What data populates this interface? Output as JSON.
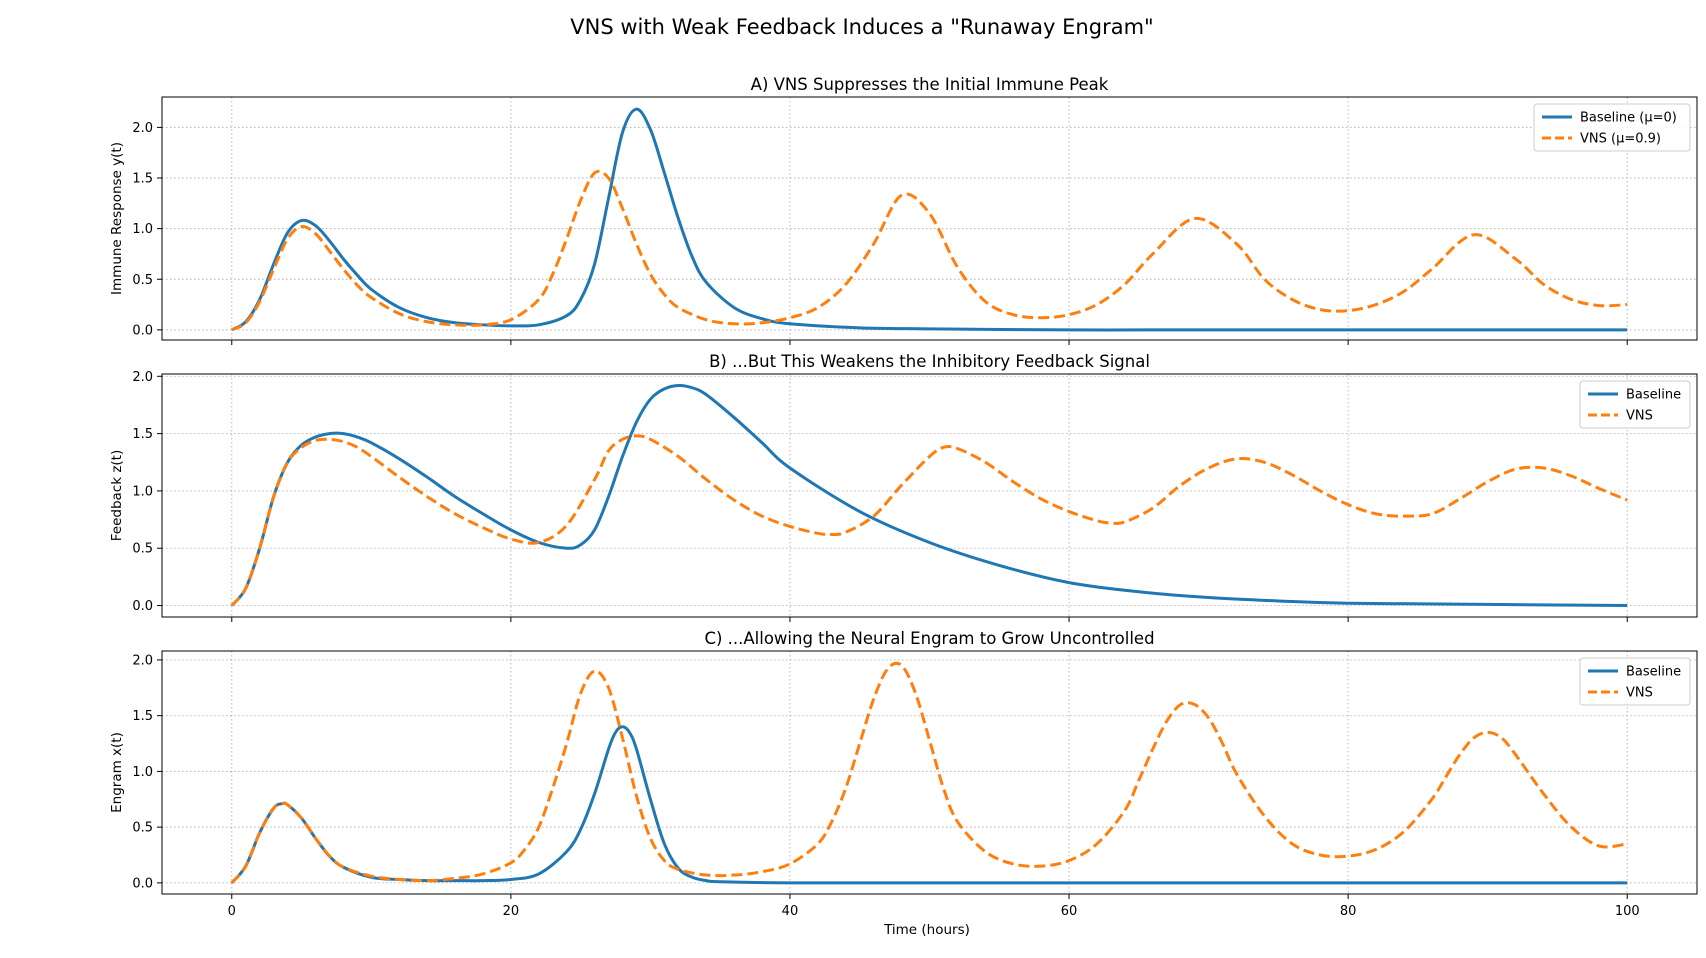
{
  "figure": {
    "suptitle": "VNS with Weak Feedback Induces a \"Runaway Engram\"",
    "xlabel": "Time (hours)"
  },
  "colors": {
    "baseline": "#1f77b4",
    "vns": "#ff7f0e"
  },
  "chart_data": [
    {
      "type": "line",
      "title": "A) VNS Suppresses the Initial Immune Peak",
      "xlabel": "Time (hours)",
      "ylabel": "Immune Response y(t)",
      "xlim": [
        -5,
        105
      ],
      "ylim": [
        -0.1,
        2.3
      ],
      "xticks": [
        0,
        20,
        40,
        60,
        80,
        100
      ],
      "yticks": [
        0.0,
        0.5,
        1.0,
        1.5,
        2.0
      ],
      "ytick_labels": [
        "0.0",
        "0.5",
        "1.0",
        "1.5",
        "2.0"
      ],
      "grid": true,
      "legend_position": "top-right",
      "series": [
        {
          "name": "Baseline (μ=0)",
          "style": "solid",
          "x": [
            0,
            1,
            2,
            3,
            4,
            5,
            6,
            7,
            8,
            9,
            10,
            12,
            14,
            16,
            18,
            20,
            22,
            24,
            25,
            26,
            27,
            28,
            29,
            30,
            31,
            32,
            33,
            34,
            36,
            38,
            40,
            45,
            50,
            60,
            70,
            80,
            90,
            100
          ],
          "y": [
            0.0,
            0.08,
            0.3,
            0.65,
            0.96,
            1.08,
            1.03,
            0.88,
            0.7,
            0.54,
            0.4,
            0.22,
            0.12,
            0.07,
            0.05,
            0.04,
            0.05,
            0.14,
            0.3,
            0.65,
            1.3,
            1.95,
            2.18,
            1.98,
            1.55,
            1.1,
            0.72,
            0.47,
            0.22,
            0.11,
            0.06,
            0.02,
            0.01,
            0.0,
            0.0,
            0.0,
            0.0,
            0.0
          ]
        },
        {
          "name": "VNS (μ=0.9)",
          "style": "dashed",
          "x": [
            0,
            1,
            2,
            3,
            4,
            5,
            6,
            7,
            8,
            9,
            10,
            12,
            14,
            16,
            18,
            20,
            22,
            23,
            24,
            25,
            26,
            27,
            28,
            29,
            30,
            31,
            32,
            34,
            36,
            38,
            40,
            42,
            44,
            46,
            48,
            50,
            52,
            54,
            56,
            58,
            60,
            62,
            64,
            66,
            69,
            72,
            74,
            76,
            78,
            80,
            82,
            84,
            86,
            89,
            92,
            94,
            96,
            98,
            100
          ],
          "y": [
            0.0,
            0.07,
            0.28,
            0.6,
            0.9,
            1.02,
            0.95,
            0.78,
            0.6,
            0.44,
            0.32,
            0.16,
            0.08,
            0.05,
            0.05,
            0.1,
            0.3,
            0.55,
            0.9,
            1.28,
            1.55,
            1.5,
            1.2,
            0.85,
            0.55,
            0.35,
            0.22,
            0.1,
            0.06,
            0.07,
            0.12,
            0.22,
            0.45,
            0.85,
            1.33,
            1.15,
            0.62,
            0.28,
            0.15,
            0.12,
            0.15,
            0.25,
            0.45,
            0.75,
            1.1,
            0.85,
            0.5,
            0.3,
            0.2,
            0.19,
            0.25,
            0.38,
            0.6,
            0.94,
            0.7,
            0.45,
            0.3,
            0.24,
            0.25
          ]
        }
      ]
    },
    {
      "type": "line",
      "title": "B) ...But This Weakens the Inhibitory Feedback Signal",
      "xlabel": "Time (hours)",
      "ylabel": "Feedback z(t)",
      "xlim": [
        -5,
        105
      ],
      "ylim": [
        -0.1,
        2.02
      ],
      "xticks": [
        0,
        20,
        40,
        60,
        80,
        100
      ],
      "yticks": [
        0.0,
        0.5,
        1.0,
        1.5,
        2.0
      ],
      "ytick_labels": [
        "0.0",
        "0.5",
        "1.0",
        "1.5",
        "2.0"
      ],
      "grid": true,
      "legend_position": "top-right",
      "series": [
        {
          "name": "Baseline",
          "style": "solid",
          "x": [
            0,
            1,
            2,
            3,
            4,
            5,
            6,
            7,
            8,
            9,
            10,
            12,
            14,
            16,
            18,
            20,
            22,
            24,
            25,
            26,
            27,
            28,
            29,
            30,
            31,
            32,
            33,
            34,
            36,
            38,
            40,
            45,
            50,
            55,
            60,
            65,
            70,
            75,
            80,
            90,
            100
          ],
          "y": [
            0.0,
            0.15,
            0.5,
            0.95,
            1.25,
            1.4,
            1.47,
            1.5,
            1.5,
            1.47,
            1.42,
            1.28,
            1.12,
            0.95,
            0.8,
            0.66,
            0.55,
            0.5,
            0.53,
            0.66,
            0.95,
            1.3,
            1.6,
            1.8,
            1.89,
            1.92,
            1.9,
            1.84,
            1.64,
            1.42,
            1.2,
            0.82,
            0.55,
            0.35,
            0.2,
            0.12,
            0.07,
            0.04,
            0.02,
            0.01,
            0.0
          ]
        },
        {
          "name": "VNS",
          "style": "dashed",
          "x": [
            0,
            1,
            2,
            3,
            4,
            5,
            6,
            7,
            8,
            9,
            10,
            12,
            14,
            16,
            18,
            20,
            22,
            24,
            26,
            27,
            28,
            29,
            30,
            32,
            34,
            36,
            38,
            40,
            42,
            43,
            44,
            46,
            48,
            50,
            51,
            52,
            54,
            56,
            58,
            60,
            62,
            63,
            64,
            66,
            68,
            70,
            72,
            74,
            76,
            78,
            80,
            82,
            84,
            86,
            88,
            90,
            92,
            94,
            96,
            98,
            100
          ],
          "y": [
            0.0,
            0.15,
            0.5,
            0.95,
            1.25,
            1.38,
            1.44,
            1.45,
            1.43,
            1.38,
            1.3,
            1.12,
            0.95,
            0.8,
            0.68,
            0.58,
            0.55,
            0.7,
            1.1,
            1.35,
            1.45,
            1.48,
            1.45,
            1.3,
            1.1,
            0.92,
            0.78,
            0.69,
            0.63,
            0.62,
            0.64,
            0.78,
            1.05,
            1.3,
            1.38,
            1.37,
            1.25,
            1.08,
            0.93,
            0.82,
            0.74,
            0.72,
            0.73,
            0.85,
            1.05,
            1.2,
            1.28,
            1.25,
            1.14,
            1.0,
            0.88,
            0.8,
            0.78,
            0.8,
            0.93,
            1.08,
            1.19,
            1.2,
            1.13,
            1.02,
            0.92
          ]
        }
      ]
    },
    {
      "type": "line",
      "title": "C) ...Allowing the Neural Engram to Grow Uncontrolled",
      "xlabel": "Time (hours)",
      "ylabel": "Engram x(t)",
      "xlim": [
        -5,
        105
      ],
      "ylim": [
        -0.1,
        2.08
      ],
      "xticks": [
        0,
        20,
        40,
        60,
        80,
        100
      ],
      "xtick_labels": [
        "0",
        "20",
        "40",
        "60",
        "80",
        "100"
      ],
      "yticks": [
        0.0,
        0.5,
        1.0,
        1.5,
        2.0
      ],
      "ytick_labels": [
        "0.0",
        "0.5",
        "1.0",
        "1.5",
        "2.0"
      ],
      "grid": true,
      "legend_position": "top-right",
      "series": [
        {
          "name": "Baseline",
          "style": "solid",
          "x": [
            0,
            1,
            2,
            3,
            3.6,
            4,
            5,
            6,
            7,
            8,
            10,
            12,
            14,
            16,
            18,
            20,
            22,
            24,
            25,
            26,
            27,
            27.5,
            28,
            28.5,
            29,
            30,
            31,
            32,
            33,
            34,
            35,
            40,
            50,
            60,
            70,
            80,
            90,
            100
          ],
          "y": [
            0.0,
            0.15,
            0.45,
            0.67,
            0.71,
            0.7,
            0.58,
            0.4,
            0.24,
            0.14,
            0.05,
            0.03,
            0.02,
            0.02,
            0.02,
            0.03,
            0.08,
            0.28,
            0.48,
            0.8,
            1.2,
            1.35,
            1.4,
            1.35,
            1.2,
            0.75,
            0.35,
            0.13,
            0.05,
            0.02,
            0.01,
            0.0,
            0.0,
            0.0,
            0.0,
            0.0,
            0.0,
            0.0
          ]
        },
        {
          "name": "VNS",
          "style": "dashed",
          "x": [
            0,
            1,
            2,
            3,
            3.6,
            4,
            5,
            6,
            7,
            8,
            10,
            12,
            14,
            16,
            18,
            20,
            21,
            22,
            23,
            24,
            25,
            26,
            27,
            28,
            29,
            30,
            31,
            32,
            34,
            36,
            38,
            40,
            42,
            43,
            44,
            45,
            46,
            47,
            48,
            49,
            50,
            51,
            52,
            54,
            56,
            58,
            60,
            62,
            64,
            65,
            66,
            67,
            68,
            69,
            70,
            71,
            72,
            74,
            76,
            78,
            80,
            82,
            84,
            86,
            87,
            88,
            89,
            90,
            91,
            92,
            94,
            96,
            98,
            100
          ],
          "y": [
            0.0,
            0.15,
            0.45,
            0.67,
            0.71,
            0.7,
            0.58,
            0.4,
            0.24,
            0.14,
            0.06,
            0.03,
            0.02,
            0.04,
            0.08,
            0.18,
            0.3,
            0.5,
            0.85,
            1.25,
            1.7,
            1.9,
            1.75,
            1.3,
            0.78,
            0.4,
            0.2,
            0.12,
            0.07,
            0.07,
            0.1,
            0.17,
            0.35,
            0.55,
            0.85,
            1.25,
            1.65,
            1.92,
            1.95,
            1.7,
            1.28,
            0.85,
            0.55,
            0.28,
            0.17,
            0.15,
            0.2,
            0.35,
            0.65,
            0.92,
            1.2,
            1.45,
            1.6,
            1.6,
            1.48,
            1.25,
            0.98,
            0.6,
            0.35,
            0.25,
            0.24,
            0.3,
            0.46,
            0.75,
            0.95,
            1.15,
            1.3,
            1.35,
            1.3,
            1.15,
            0.8,
            0.5,
            0.33,
            0.35
          ]
        }
      ]
    }
  ]
}
